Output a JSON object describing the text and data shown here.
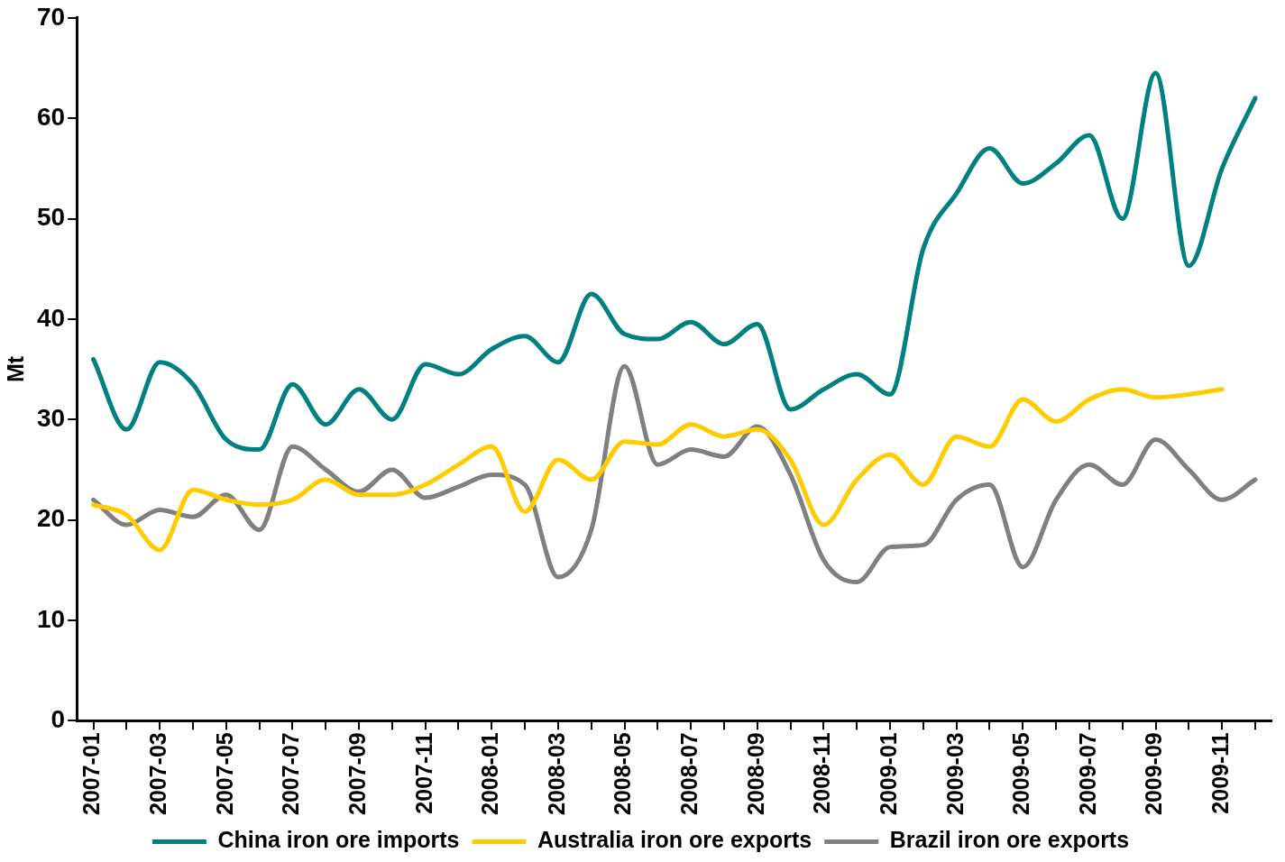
{
  "chart_data": {
    "type": "line",
    "ylabel": "Mt",
    "categories": [
      "2007-01",
      null,
      "2007-03",
      null,
      "2007-05",
      null,
      "2007-07",
      null,
      "2007-09",
      null,
      "2007-11",
      null,
      "2008-01",
      null,
      "2008-03",
      null,
      "2008-05",
      null,
      "2008-07",
      null,
      "2008-09",
      null,
      "2008-11",
      null,
      "2009-01",
      null,
      "2009-03",
      null,
      "2009-05",
      null,
      "2009-07",
      null,
      "2009-09",
      null,
      "2009-11",
      null
    ],
    "series": [
      {
        "name": "China iron ore imports",
        "color": "#008080",
        "values": [
          36,
          29,
          35.7,
          33.5,
          28,
          27,
          33.5,
          29.5,
          33,
          30,
          35.5,
          34.5,
          37,
          38.3,
          35.7,
          42.5,
          38.5,
          38,
          39.7,
          37.5,
          39.5,
          31,
          33,
          34.5,
          32.5,
          47,
          52.5,
          57,
          53.5,
          55.5,
          58.3,
          50,
          64.5,
          45.3,
          55,
          62
        ]
      },
      {
        "name": "Australia iron ore exports",
        "color": "#ffcc00",
        "values": [
          21.5,
          20.5,
          17,
          23,
          22,
          21.5,
          22,
          24,
          22.5,
          22.5,
          23.5,
          25.5,
          27.3,
          20.8,
          26,
          24,
          27.8,
          27.5,
          29.5,
          28.3,
          29,
          26,
          19.5,
          24,
          26.5,
          23.5,
          28.3,
          27.3,
          32,
          29.8,
          32,
          33,
          32.2,
          32.5,
          33,
          null
        ]
      },
      {
        "name": "Brazil iron ore exports",
        "color": "#808080",
        "values": [
          22,
          19.5,
          21,
          20.3,
          22.5,
          19,
          27.3,
          25,
          22.8,
          25,
          22.2,
          23.3,
          24.5,
          23.5,
          14.3,
          19,
          35.3,
          25.5,
          27,
          26.3,
          29.3,
          24.5,
          16,
          13.8,
          17.3,
          17.5,
          22,
          23.5,
          15.3,
          22,
          25.5,
          23.5,
          28,
          25,
          22,
          24
        ]
      }
    ],
    "ylim": [
      0,
      70
    ],
    "yticks": [
      0,
      10,
      20,
      30,
      40,
      50,
      60,
      70
    ],
    "grid": false,
    "legend": "bottom",
    "marker": "none",
    "line_style": "solid"
  }
}
